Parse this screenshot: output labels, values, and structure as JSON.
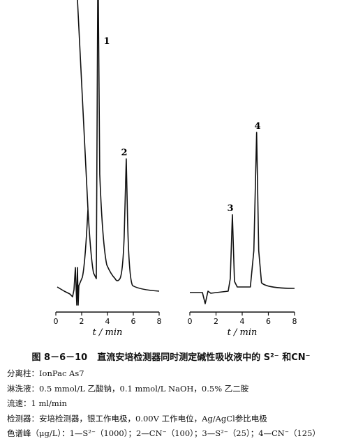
{
  "caption": {
    "number": "图 8－6－10",
    "title": "直流安培检测器同时测定碱性吸收液中的 S²⁻ 和CN⁻"
  },
  "notes": [
    "分离柱：IonPac As7",
    "淋洗液：0.5 mmol/L 乙酸钠，0.1 mmol/L NaOH，0.5% 乙二胺",
    "流速：1 ml/min",
    "检测器：安培检测器，银工作电极，0.00V 工作电位，Ag/AgCl参比电极",
    "色谱峰（μg/L）：1—S²⁻（1000）；2—CN⁻（100）；3—S²⁻（25）；4—CN⁻（125）"
  ],
  "chart_data": [
    {
      "type": "line",
      "xlabel": "t / min",
      "xlim": [
        0,
        8
      ],
      "x_ticks": [
        0,
        2,
        4,
        6,
        8
      ],
      "x_tick_labels": [
        "0",
        "2",
        "4",
        "6",
        "8"
      ],
      "grid": false,
      "peaks": [
        {
          "label": "1",
          "x": 3.4,
          "height": "off-scale"
        },
        {
          "label": "2",
          "x": 5.4
        }
      ]
    },
    {
      "type": "line",
      "xlabel": "t / min",
      "xlim": [
        0,
        8
      ],
      "x_ticks": [
        0,
        2,
        4,
        6,
        8
      ],
      "x_tick_labels": [
        "0",
        "2",
        "4",
        "6",
        "8"
      ],
      "grid": false,
      "peaks": [
        {
          "label": "3",
          "x": 3.25
        },
        {
          "label": "4",
          "x": 5.05
        }
      ]
    }
  ]
}
